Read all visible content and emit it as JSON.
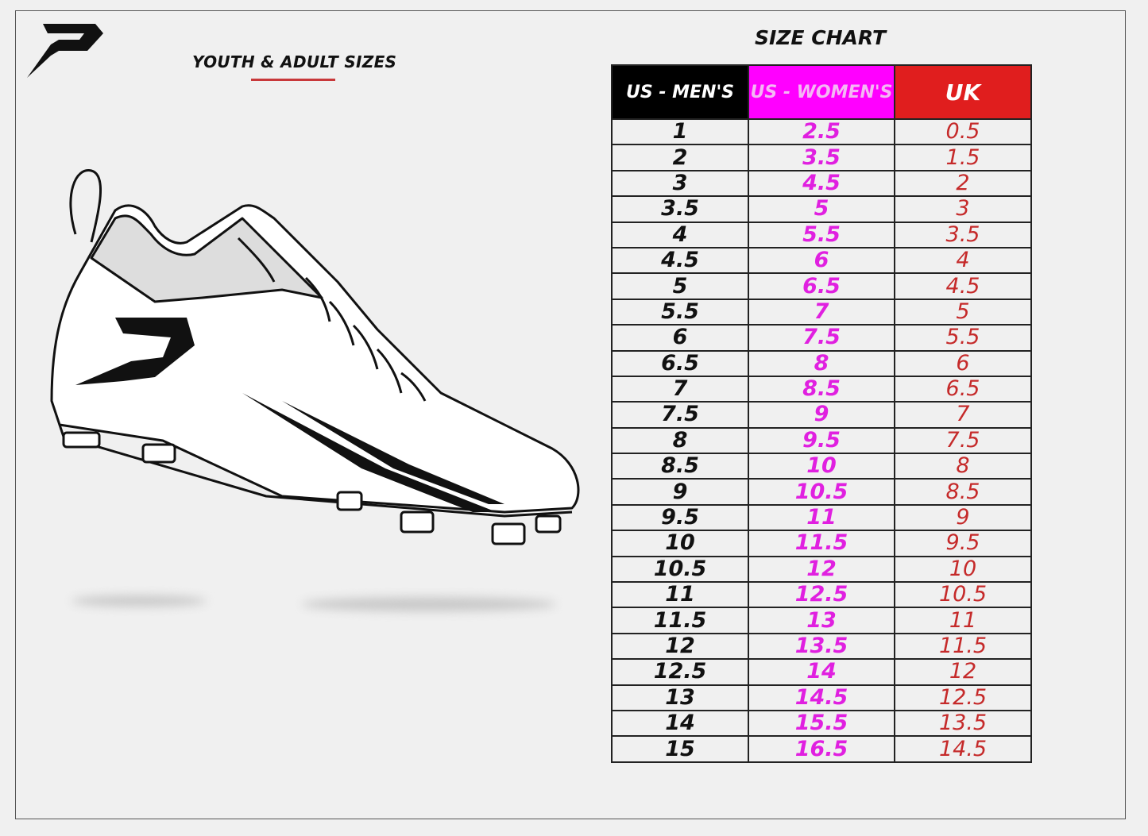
{
  "header": {
    "subtitle": "YOUTH & ADULT SIZES",
    "title": "SIZE CHART"
  },
  "colors": {
    "men": "#000000",
    "women": "#ff00ff",
    "uk": "#e01e1e",
    "underline": "#c8383a"
  },
  "table": {
    "columns": [
      "US - MEN'S",
      "US - WOMEN'S",
      "UK"
    ],
    "rows": [
      [
        "1",
        "2.5",
        "0.5"
      ],
      [
        "2",
        "3.5",
        "1.5"
      ],
      [
        "3",
        "4.5",
        "2"
      ],
      [
        "3.5",
        "5",
        "3"
      ],
      [
        "4",
        "5.5",
        "3.5"
      ],
      [
        "4.5",
        "6",
        "4"
      ],
      [
        "5",
        "6.5",
        "4.5"
      ],
      [
        "5.5",
        "7",
        "5"
      ],
      [
        "6",
        "7.5",
        "5.5"
      ],
      [
        "6.5",
        "8",
        "6"
      ],
      [
        "7",
        "8.5",
        "6.5"
      ],
      [
        "7.5",
        "9",
        "7"
      ],
      [
        "8",
        "9.5",
        "7.5"
      ],
      [
        "8.5",
        "10",
        "8"
      ],
      [
        "9",
        "10.5",
        "8.5"
      ],
      [
        "9.5",
        "11",
        "9"
      ],
      [
        "10",
        "11.5",
        "9.5"
      ],
      [
        "10.5",
        "12",
        "10"
      ],
      [
        "11",
        "12.5",
        "10.5"
      ],
      [
        "11.5",
        "13",
        "11"
      ],
      [
        "12",
        "13.5",
        "11.5"
      ],
      [
        "12.5",
        "14",
        "12"
      ],
      [
        "13",
        "14.5",
        "12.5"
      ],
      [
        "14",
        "15.5",
        "13.5"
      ],
      [
        "15",
        "16.5",
        "14.5"
      ]
    ]
  }
}
